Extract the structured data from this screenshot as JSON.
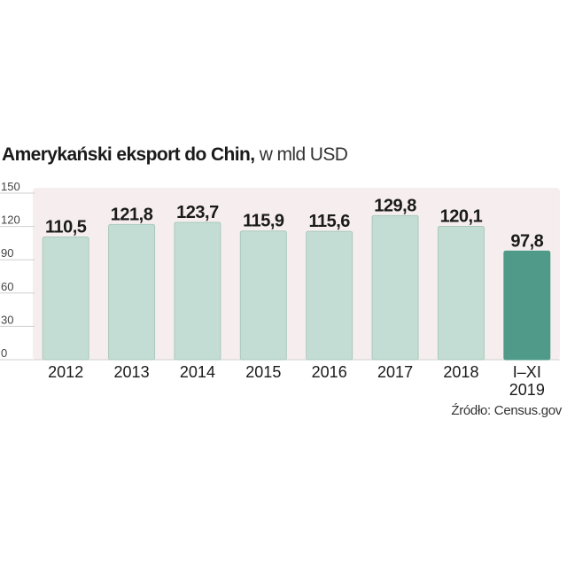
{
  "title": {
    "main": "Amerykański eksport do Chin,",
    "unit": "w mld USD"
  },
  "source": "Źródło: Census.gov",
  "colors": {
    "bar": "#c3ddd4",
    "bar_stroke": "#a9c9be",
    "bar_highlight": "#4f9a89",
    "background_panel": "#f6eeee",
    "grid": "#cfcfcf"
  },
  "chart_data": {
    "type": "bar",
    "categories": [
      "2012",
      "2013",
      "2014",
      "2015",
      "2016",
      "2017",
      "2018",
      "I–XI\n2019"
    ],
    "values": [
      110.5,
      121.8,
      123.7,
      115.9,
      115.6,
      129.8,
      120.1,
      97.8
    ],
    "value_labels": [
      "110,5",
      "121,8",
      "123,7",
      "115,9",
      "115,6",
      "129,8",
      "120,1",
      "97,8"
    ],
    "highlight_index": 7,
    "yticks": [
      0,
      30,
      60,
      90,
      120,
      150
    ],
    "ylim": [
      0,
      150
    ],
    "grid": true,
    "xlabel": "",
    "ylabel": ""
  }
}
